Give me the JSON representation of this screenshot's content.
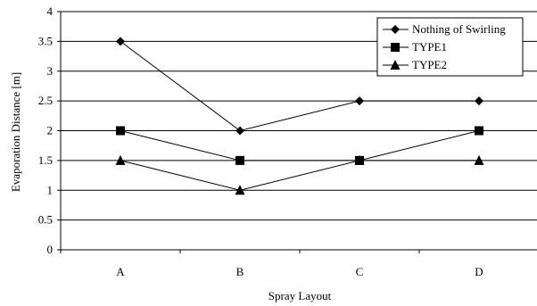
{
  "chart_data": {
    "type": "line",
    "title": "",
    "xlabel": "Spray Layout",
    "ylabel": "Evaporation Distance [m]",
    "categories": [
      "A",
      "B",
      "C",
      "D"
    ],
    "ylim": [
      0,
      4
    ],
    "yticks": [
      "0",
      "0.5",
      "1",
      "1.5",
      "2",
      "2.5",
      "3",
      "3.5",
      "4"
    ],
    "grid": true,
    "legend_position": "top-right",
    "series": [
      {
        "name": "Nothing of Swirling",
        "marker": "diamond",
        "color": "#000000",
        "values": [
          3.5,
          2.0,
          2.5,
          2.5
        ]
      },
      {
        "name": "TYPE1",
        "marker": "square",
        "color": "#000000",
        "values": [
          2.0,
          1.5,
          1.5,
          2.0
        ]
      },
      {
        "name": "TYPE2",
        "marker": "triangle",
        "color": "#000000",
        "values": [
          1.5,
          1.0,
          1.5,
          1.5
        ]
      }
    ]
  }
}
